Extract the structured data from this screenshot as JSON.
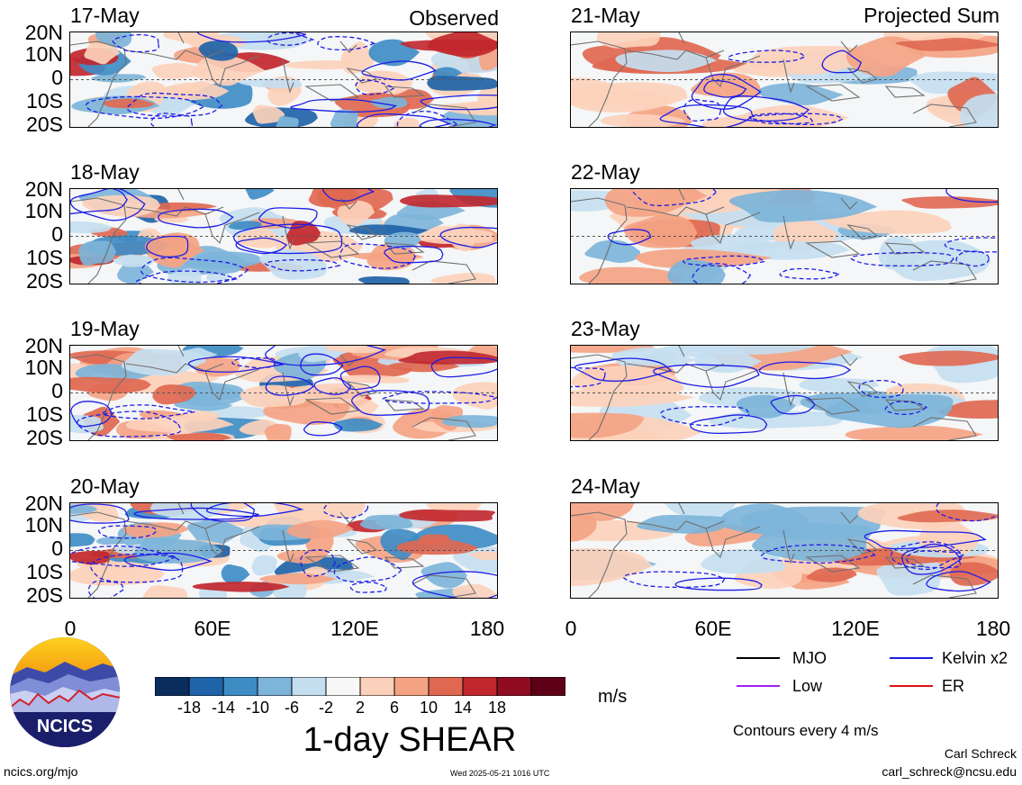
{
  "chart_data": {
    "type": "heatmap",
    "title": "1-day SHEAR",
    "units": "m/s",
    "columns": [
      {
        "label": "Observed",
        "dates": [
          "17-May",
          "18-May",
          "19-May",
          "20-May"
        ]
      },
      {
        "label": "Projected Sum",
        "dates": [
          "21-May",
          "22-May",
          "23-May",
          "24-May"
        ]
      }
    ],
    "ylabels": [
      "20N",
      "10N",
      "0",
      "10S",
      "20S"
    ],
    "xlabels": [
      "0",
      "60E",
      "120E",
      "180"
    ],
    "ylim": [
      -20,
      20
    ],
    "xlim": [
      0,
      180
    ],
    "colorbar": {
      "tick_labels": [
        "-18",
        "-14",
        "-10",
        "-6",
        "-2",
        "2",
        "6",
        "10",
        "14",
        "18"
      ],
      "colors": [
        "#0b2d5e",
        "#1f63a8",
        "#3f8cc5",
        "#7db4d9",
        "#c4def0",
        "#f7f7f7",
        "#fcd1bb",
        "#f4a384",
        "#e06851",
        "#c1272d",
        "#900c21",
        "#5e0016"
      ]
    },
    "legend": {
      "title": "Contours every 4 m/s",
      "entries": [
        {
          "name": "MJO",
          "color": "#000000"
        },
        {
          "name": "Kelvin x2",
          "color": "#1d1de6"
        },
        {
          "name": "Low",
          "color": "#a020f0"
        },
        {
          "name": "ER",
          "color": "#e01010"
        }
      ]
    }
  },
  "credits": {
    "author": "Carl Schreck",
    "email": "carl_schreck@ncsu.edu",
    "site": "ncics.org/mjo",
    "timestamp": "Wed 2025-05-21 1016 UTC",
    "logo_text": "NCICS"
  }
}
